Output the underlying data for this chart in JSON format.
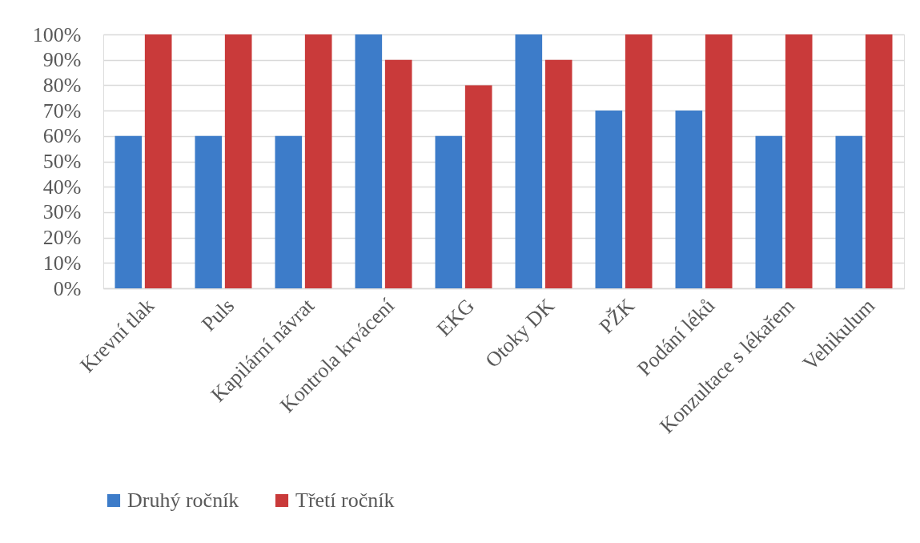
{
  "chart_data": {
    "type": "bar",
    "categories": [
      "Krevní tlak",
      "Puls",
      "Kapilární návrat",
      "Kontrola krvácení",
      "EKG",
      "Otoky DK",
      "PŽK",
      "Podání léků",
      "Konzultace s lékařem",
      "Vehikulum"
    ],
    "series": [
      {
        "name": "Druhý ročník",
        "color": "#3d7cc9",
        "values": [
          60,
          60,
          60,
          100,
          60,
          100,
          70,
          70,
          60,
          60
        ]
      },
      {
        "name": "Třetí ročník",
        "color": "#c93a3a",
        "values": [
          100,
          100,
          100,
          90,
          80,
          90,
          100,
          100,
          100,
          100
        ]
      }
    ],
    "ylim": [
      0,
      100
    ],
    "yticks": [
      {
        "value": 0,
        "label": "0%"
      },
      {
        "value": 10,
        "label": "10%"
      },
      {
        "value": 20,
        "label": "20%"
      },
      {
        "value": 30,
        "label": "30%"
      },
      {
        "value": 40,
        "label": "40%"
      },
      {
        "value": 50,
        "label": "50%"
      },
      {
        "value": 60,
        "label": "60%"
      },
      {
        "value": 70,
        "label": "70%"
      },
      {
        "value": 80,
        "label": "80%"
      },
      {
        "value": 90,
        "label": "90%"
      },
      {
        "value": 100,
        "label": "100%"
      }
    ],
    "grid": "y",
    "legend": "bottom"
  }
}
